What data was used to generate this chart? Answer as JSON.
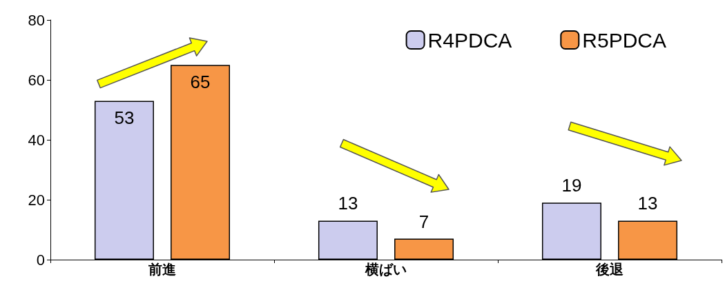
{
  "chart_data": {
    "type": "bar",
    "categories": [
      "前進",
      "横ばい",
      "後退"
    ],
    "series": [
      {
        "name": "R4PDCA",
        "color": "#ccccee",
        "values": [
          53,
          13,
          19
        ]
      },
      {
        "name": "R5PDCA",
        "color": "#f79646",
        "values": [
          65,
          7,
          13
        ]
      }
    ],
    "ylim": [
      0,
      80
    ],
    "yticks": [
      0,
      20,
      40,
      60,
      80
    ],
    "grid": false,
    "legend": "top right",
    "data_labels": true
  }
}
